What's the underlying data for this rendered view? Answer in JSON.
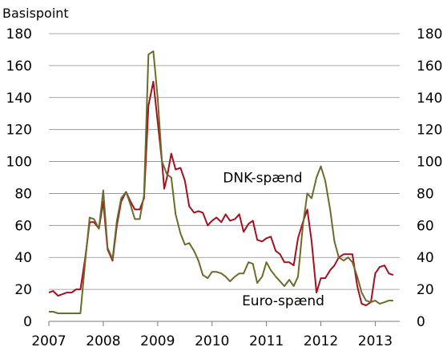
{
  "chart_data": {
    "type": "line",
    "unit_label": "Basispoint",
    "ylim": [
      0,
      180
    ],
    "y_ticks": [
      0,
      20,
      40,
      60,
      80,
      100,
      120,
      140,
      160,
      180
    ],
    "xlim": [
      2007.0,
      2013.45
    ],
    "x_ticks": [
      2007,
      2008,
      2009,
      2010,
      2011,
      2012,
      2013
    ],
    "grid": true,
    "series": [
      {
        "name": "DNK-spænd",
        "color": "#a50f1e",
        "points": [
          [
            2007.0,
            18
          ],
          [
            2007.08,
            19
          ],
          [
            2007.17,
            16
          ],
          [
            2007.25,
            17
          ],
          [
            2007.33,
            18
          ],
          [
            2007.42,
            18
          ],
          [
            2007.5,
            20
          ],
          [
            2007.58,
            20
          ],
          [
            2007.67,
            40
          ],
          [
            2007.75,
            62
          ],
          [
            2007.83,
            62
          ],
          [
            2007.92,
            58
          ],
          [
            2008.0,
            75
          ],
          [
            2008.08,
            45
          ],
          [
            2008.17,
            38
          ],
          [
            2008.25,
            60
          ],
          [
            2008.33,
            75
          ],
          [
            2008.42,
            81
          ],
          [
            2008.5,
            75
          ],
          [
            2008.58,
            70
          ],
          [
            2008.67,
            70
          ],
          [
            2008.75,
            77
          ],
          [
            2008.83,
            135
          ],
          [
            2008.92,
            150
          ],
          [
            2009.0,
            125
          ],
          [
            2009.08,
            100
          ],
          [
            2009.12,
            83
          ],
          [
            2009.17,
            90
          ],
          [
            2009.25,
            105
          ],
          [
            2009.33,
            95
          ],
          [
            2009.42,
            96
          ],
          [
            2009.5,
            88
          ],
          [
            2009.58,
            72
          ],
          [
            2009.67,
            68
          ],
          [
            2009.75,
            69
          ],
          [
            2009.83,
            68
          ],
          [
            2009.92,
            60
          ],
          [
            2010.0,
            63
          ],
          [
            2010.08,
            65
          ],
          [
            2010.17,
            62
          ],
          [
            2010.25,
            67
          ],
          [
            2010.33,
            63
          ],
          [
            2010.42,
            64
          ],
          [
            2010.5,
            67
          ],
          [
            2010.58,
            56
          ],
          [
            2010.67,
            61
          ],
          [
            2010.75,
            63
          ],
          [
            2010.83,
            51
          ],
          [
            2010.92,
            50
          ],
          [
            2011.0,
            52
          ],
          [
            2011.08,
            53
          ],
          [
            2011.17,
            44
          ],
          [
            2011.25,
            42
          ],
          [
            2011.33,
            37
          ],
          [
            2011.42,
            37
          ],
          [
            2011.5,
            35
          ],
          [
            2011.58,
            52
          ],
          [
            2011.67,
            62
          ],
          [
            2011.75,
            70
          ],
          [
            2011.83,
            50
          ],
          [
            2011.92,
            18
          ],
          [
            2012.0,
            27
          ],
          [
            2012.08,
            27
          ],
          [
            2012.17,
            32
          ],
          [
            2012.25,
            35
          ],
          [
            2012.33,
            40
          ],
          [
            2012.42,
            42
          ],
          [
            2012.5,
            42
          ],
          [
            2012.58,
            42
          ],
          [
            2012.67,
            22
          ],
          [
            2012.75,
            11
          ],
          [
            2012.83,
            10
          ],
          [
            2012.92,
            12
          ],
          [
            2013.0,
            30
          ],
          [
            2013.08,
            34
          ],
          [
            2013.17,
            35
          ],
          [
            2013.25,
            30
          ],
          [
            2013.33,
            29
          ]
        ]
      },
      {
        "name": "Euro-spænd",
        "color": "#6b6b2a",
        "points": [
          [
            2007.0,
            6
          ],
          [
            2007.08,
            6
          ],
          [
            2007.17,
            5
          ],
          [
            2007.25,
            5
          ],
          [
            2007.33,
            5
          ],
          [
            2007.42,
            5
          ],
          [
            2007.5,
            5
          ],
          [
            2007.58,
            5
          ],
          [
            2007.67,
            38
          ],
          [
            2007.75,
            65
          ],
          [
            2007.83,
            64
          ],
          [
            2007.92,
            58
          ],
          [
            2008.0,
            82
          ],
          [
            2008.08,
            46
          ],
          [
            2008.17,
            39
          ],
          [
            2008.25,
            63
          ],
          [
            2008.33,
            77
          ],
          [
            2008.42,
            81
          ],
          [
            2008.5,
            73
          ],
          [
            2008.58,
            64
          ],
          [
            2008.67,
            64
          ],
          [
            2008.75,
            79
          ],
          [
            2008.83,
            167
          ],
          [
            2008.92,
            169
          ],
          [
            2009.0,
            140
          ],
          [
            2009.08,
            100
          ],
          [
            2009.17,
            92
          ],
          [
            2009.25,
            90
          ],
          [
            2009.33,
            67
          ],
          [
            2009.42,
            55
          ],
          [
            2009.5,
            48
          ],
          [
            2009.58,
            49
          ],
          [
            2009.67,
            44
          ],
          [
            2009.75,
            38
          ],
          [
            2009.83,
            29
          ],
          [
            2009.92,
            27
          ],
          [
            2010.0,
            31
          ],
          [
            2010.08,
            31
          ],
          [
            2010.17,
            30
          ],
          [
            2010.25,
            28
          ],
          [
            2010.33,
            25
          ],
          [
            2010.42,
            28
          ],
          [
            2010.5,
            30
          ],
          [
            2010.58,
            30
          ],
          [
            2010.67,
            37
          ],
          [
            2010.75,
            36
          ],
          [
            2010.83,
            24
          ],
          [
            2010.92,
            28
          ],
          [
            2011.0,
            37
          ],
          [
            2011.08,
            32
          ],
          [
            2011.17,
            28
          ],
          [
            2011.25,
            25
          ],
          [
            2011.33,
            22
          ],
          [
            2011.42,
            26
          ],
          [
            2011.5,
            22
          ],
          [
            2011.58,
            28
          ],
          [
            2011.67,
            60
          ],
          [
            2011.75,
            80
          ],
          [
            2011.83,
            77
          ],
          [
            2011.92,
            90
          ],
          [
            2012.0,
            97
          ],
          [
            2012.08,
            88
          ],
          [
            2012.17,
            70
          ],
          [
            2012.25,
            50
          ],
          [
            2012.33,
            40
          ],
          [
            2012.42,
            38
          ],
          [
            2012.5,
            40
          ],
          [
            2012.58,
            37
          ],
          [
            2012.67,
            28
          ],
          [
            2012.75,
            18
          ],
          [
            2012.83,
            13
          ],
          [
            2012.92,
            12
          ],
          [
            2013.0,
            13
          ],
          [
            2013.08,
            11
          ],
          [
            2013.17,
            12
          ],
          [
            2013.25,
            13
          ],
          [
            2013.33,
            13
          ]
        ]
      }
    ],
    "annotations": [
      {
        "text": "DNK-spænd",
        "x": 2010.2,
        "y": 87
      },
      {
        "text": "Euro-spænd",
        "x": 2010.55,
        "y": 10
      }
    ]
  }
}
